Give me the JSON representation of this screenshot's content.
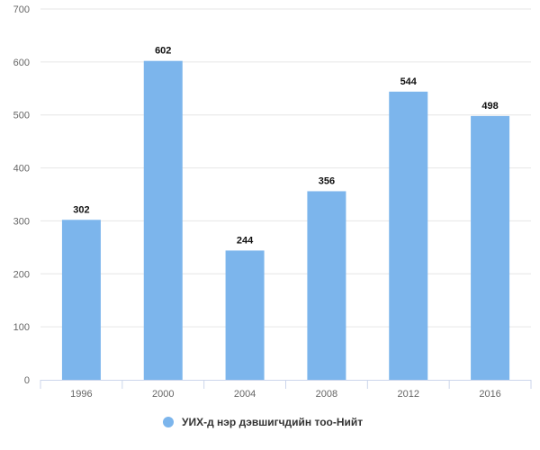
{
  "chart_data": {
    "type": "bar",
    "categories": [
      "1996",
      "2000",
      "2004",
      "2008",
      "2012",
      "2016"
    ],
    "series": [
      {
        "name": "УИХ-д нэр дэвшигчдийн тоо-Нийт",
        "values": [
          302,
          602,
          244,
          356,
          544,
          498
        ],
        "color": "#7cb5ec"
      }
    ],
    "ylim": [
      0,
      700
    ],
    "yticks": [
      0,
      100,
      200,
      300,
      400,
      500,
      600,
      700
    ],
    "grid": true,
    "legend": "bottom-center",
    "data_labels": true
  }
}
